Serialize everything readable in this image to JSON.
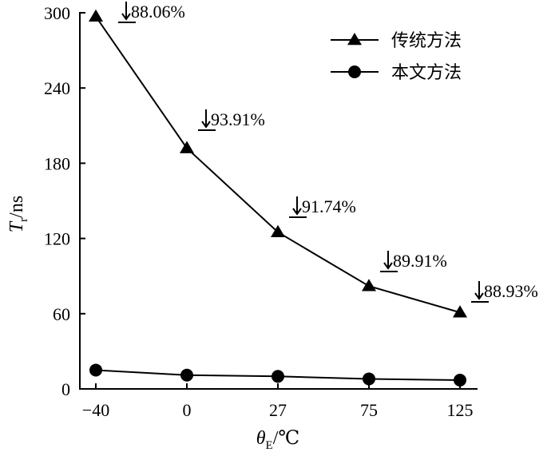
{
  "chart_data": {
    "type": "line",
    "categories": [
      "−40",
      "0",
      "27",
      "75",
      "125"
    ],
    "series": [
      {
        "name": "传统方法",
        "marker": "triangle",
        "values": [
          297,
          192,
          125,
          82,
          61
        ]
      },
      {
        "name": "本文方法",
        "marker": "circle",
        "values": [
          15,
          11,
          10,
          8,
          7
        ]
      }
    ],
    "annotations": [
      {
        "index": 0,
        "text": "88.06%"
      },
      {
        "index": 1,
        "text": "93.91%"
      },
      {
        "index": 2,
        "text": "91.74%"
      },
      {
        "index": 3,
        "text": "89.91%"
      },
      {
        "index": 4,
        "text": "88.93%"
      }
    ],
    "xlabel": {
      "symbol": "θ",
      "sub": "E",
      "unit": "/℃"
    },
    "ylabel": {
      "symbol": "T",
      "sub": "r",
      "unit": "/ns"
    },
    "ylim": [
      0,
      300
    ],
    "yticks": [
      0,
      60,
      120,
      180,
      240,
      300
    ],
    "grid": false,
    "legend_position": "top-right",
    "colors": {
      "line": "#000000",
      "marker": "#000000"
    }
  }
}
